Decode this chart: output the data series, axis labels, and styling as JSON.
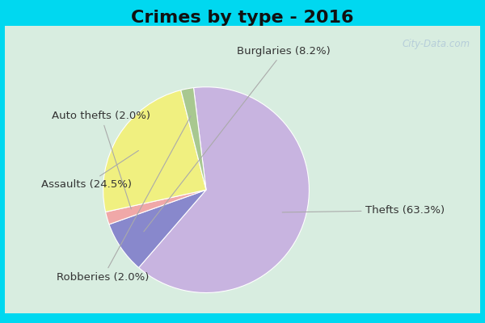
{
  "title": "Crimes by type - 2016",
  "slices": [
    {
      "label": "Thefts",
      "pct": 63.3,
      "color": "#c8b4e0"
    },
    {
      "label": "Burglaries",
      "pct": 8.2,
      "color": "#8888cc"
    },
    {
      "label": "Auto thefts",
      "pct": 2.0,
      "color": "#f0a8a8"
    },
    {
      "label": "Assaults",
      "pct": 24.5,
      "color": "#f0f080"
    },
    {
      "label": "Robberies",
      "pct": 2.0,
      "color": "#a8c890"
    }
  ],
  "bg_color_top": "#00d8f0",
  "bg_color_inner_left": "#c8e8d8",
  "bg_color_inner_right": "#e8e8f4",
  "title_font_size": 16,
  "label_font_size": 9.5,
  "watermark": "City-Data.com"
}
